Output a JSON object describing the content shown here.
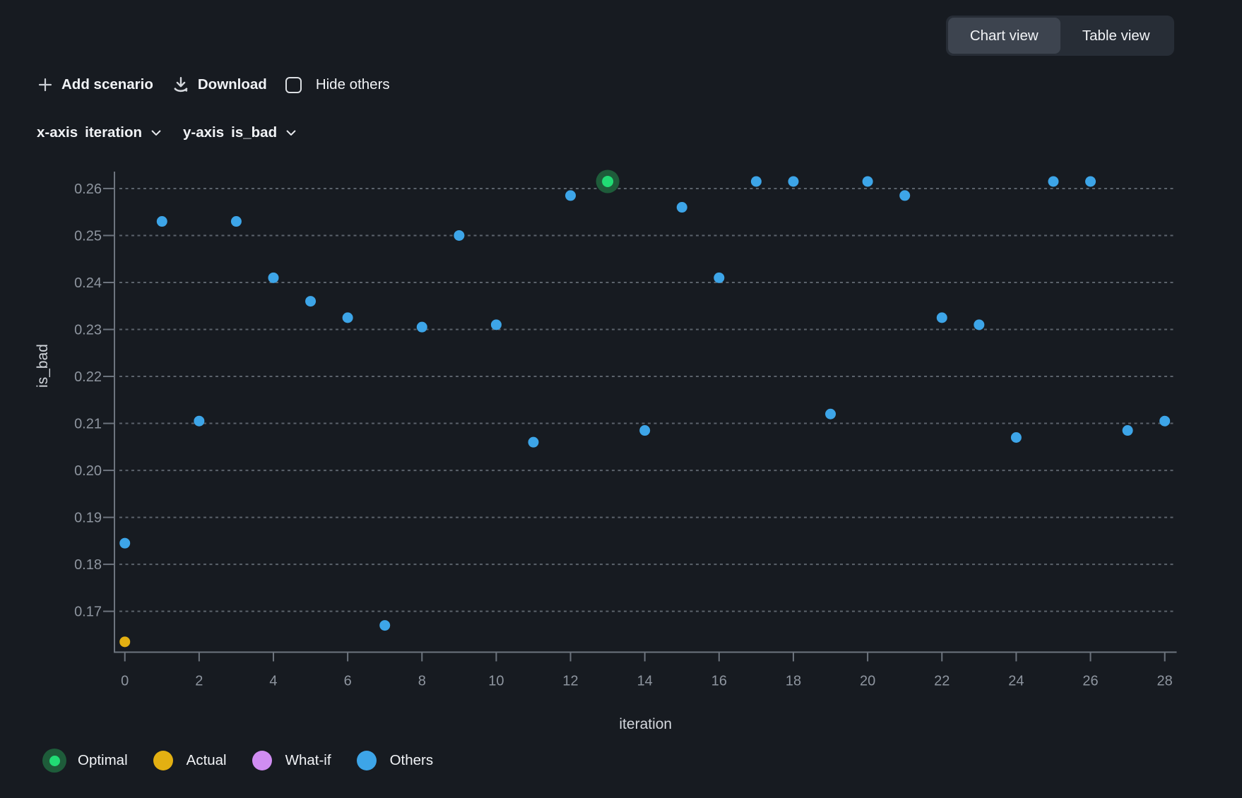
{
  "view_toggle": {
    "options": [
      "Chart view",
      "Table view"
    ],
    "active_index": 0
  },
  "toolbar": {
    "add_scenario_label": "Add scenario",
    "download_label": "Download",
    "hide_others_label": "Hide others",
    "hide_others_checked": false
  },
  "axis_selectors": {
    "x_prefix": "x-axis",
    "x_value": "iteration",
    "y_prefix": "y-axis",
    "y_value": "is_bad"
  },
  "legend": {
    "items": [
      {
        "label": "Optimal",
        "color": "#21db74",
        "halo": "#1e5c3a"
      },
      {
        "label": "Actual",
        "color": "#e3b012"
      },
      {
        "label": "What-if",
        "color": "#d08df2"
      },
      {
        "label": "Others",
        "color": "#3da5e8"
      }
    ]
  },
  "chart_data": {
    "type": "scatter",
    "title": "",
    "xlabel": "iteration",
    "ylabel": "is_bad",
    "xlim": [
      -0.28,
      28.32
    ],
    "ylim": [
      0.1613,
      0.2636
    ],
    "x_ticks": [
      0,
      2,
      4,
      6,
      8,
      10,
      12,
      14,
      16,
      18,
      20,
      22,
      24,
      26,
      28
    ],
    "y_ticks": [
      0.17,
      0.18,
      0.19,
      0.2,
      0.21,
      0.22,
      0.23,
      0.24,
      0.25,
      0.26
    ],
    "grid": "horizontal-dashed",
    "legend_position": "bottom-left",
    "series": [
      {
        "name": "Optimal",
        "color": "#21db74",
        "halo": "#1e5c3a",
        "points": [
          [
            13,
            0.2615
          ]
        ]
      },
      {
        "name": "Actual",
        "color": "#e3b012",
        "points": [
          [
            0,
            0.1635
          ]
        ]
      },
      {
        "name": "What-if",
        "color": "#d08df2",
        "points": []
      },
      {
        "name": "Others",
        "color": "#3da5e8",
        "points": [
          [
            0,
            0.1845
          ],
          [
            1,
            0.253
          ],
          [
            2,
            0.2105
          ],
          [
            3,
            0.253
          ],
          [
            4,
            0.241
          ],
          [
            5,
            0.236
          ],
          [
            6,
            0.2325
          ],
          [
            7,
            0.167
          ],
          [
            8,
            0.2305
          ],
          [
            9,
            0.25
          ],
          [
            10,
            0.231
          ],
          [
            11,
            0.206
          ],
          [
            12,
            0.2585
          ],
          [
            14,
            0.2085
          ],
          [
            15,
            0.256
          ],
          [
            16,
            0.241
          ],
          [
            17,
            0.2615
          ],
          [
            18,
            0.2615
          ],
          [
            19,
            0.212
          ],
          [
            20,
            0.2615
          ],
          [
            21,
            0.2585
          ],
          [
            22,
            0.2325
          ],
          [
            23,
            0.231
          ],
          [
            24,
            0.207
          ],
          [
            25,
            0.2615
          ],
          [
            26,
            0.2615
          ],
          [
            27,
            0.2085
          ],
          [
            28,
            0.2105
          ]
        ]
      }
    ]
  }
}
